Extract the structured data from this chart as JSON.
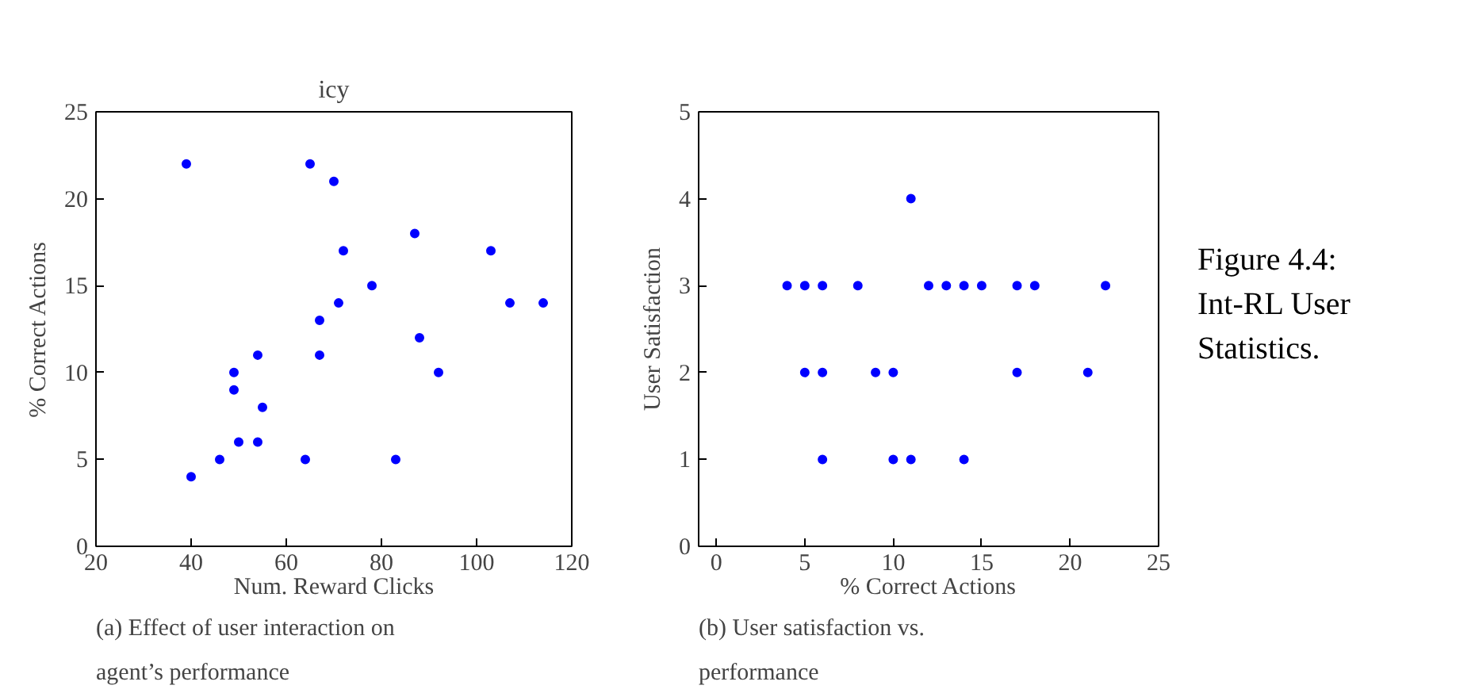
{
  "chart_data": [
    {
      "type": "scatter",
      "title": "icy",
      "xlabel": "Num. Reward Clicks",
      "ylabel": "% Correct Actions",
      "marker": "circle",
      "grid": false,
      "x": [
        39,
        65,
        70,
        87,
        72,
        103,
        78,
        71,
        107,
        114,
        67,
        88,
        54,
        67,
        49,
        92,
        49,
        55,
        50,
        54,
        46,
        64,
        83,
        40
      ],
      "values": [
        22,
        22,
        21,
        18,
        17,
        17,
        15,
        14,
        14,
        14,
        13,
        12,
        11,
        11,
        10,
        10,
        9,
        8,
        6,
        6,
        5,
        5,
        5,
        4
      ],
      "color": "#0000ff",
      "xlim": [
        20,
        120
      ],
      "xticks": [
        20,
        40,
        60,
        80,
        100,
        120
      ],
      "ylim": [
        0,
        25
      ],
      "yticks": [
        0,
        5,
        10,
        15,
        20,
        25
      ],
      "annotations": [
        "(a) Effect of user interaction on agent’s performance"
      ]
    },
    {
      "type": "scatter",
      "xlabel": "% Correct Actions",
      "ylabel": "User Satisfaction",
      "marker": "circle",
      "grid": false,
      "x": [
        4,
        5,
        6,
        8,
        12,
        13,
        14,
        15,
        17,
        18,
        22,
        5,
        6,
        9,
        10,
        17,
        21,
        6,
        10,
        11,
        14,
        11
      ],
      "values": [
        3,
        3,
        3,
        3,
        3,
        3,
        3,
        3,
        3,
        3,
        3,
        2,
        2,
        2,
        2,
        2,
        2,
        1,
        1,
        1,
        1,
        4
      ],
      "color": "#0000ff",
      "xlim": [
        -1,
        25
      ],
      "xticks": [
        0,
        5,
        10,
        15,
        20,
        25
      ],
      "ylim": [
        0,
        5
      ],
      "yticks": [
        0,
        1,
        2,
        3,
        4,
        5
      ],
      "annotations": [
        "(b) User satisfaction vs. performance",
        "Figure 4.4: Int-RL User Statistics."
      ]
    }
  ]
}
